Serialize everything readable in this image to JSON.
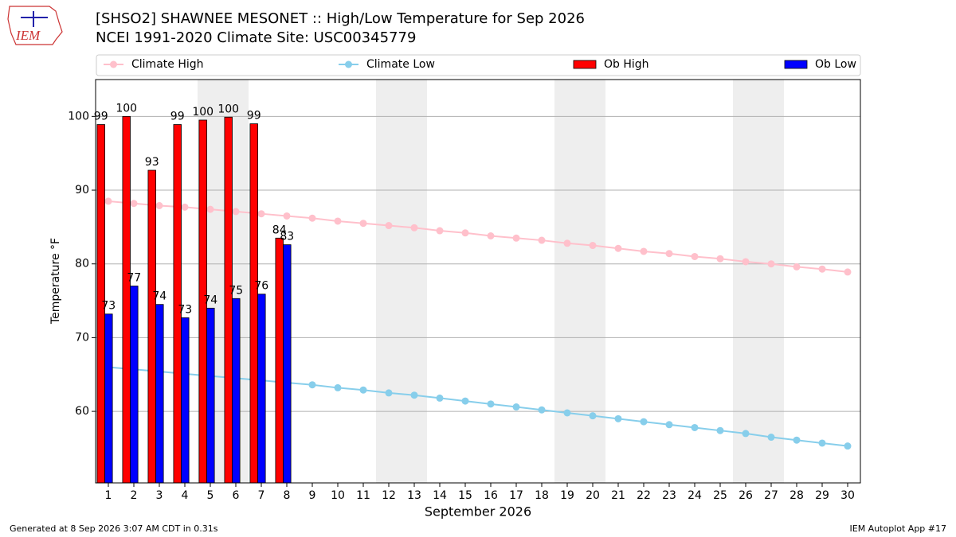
{
  "logo_text": "IEM",
  "footer_left": "Generated at 8 Sep 2026 3:07 AM CDT in 0.31s",
  "footer_right": "IEM Autoplot App #17",
  "chart_data": {
    "type": "bar",
    "title": "[SHSO2] SHAWNEE MESONET :: High/Low Temperature for Sep 2026",
    "subtitle": "NCEI 1991-2020 Climate Site: USC00345779",
    "x_label": "September 2026",
    "y_label": "Temperature °F",
    "x": [
      1,
      2,
      3,
      4,
      5,
      6,
      7,
      8,
      9,
      10,
      11,
      12,
      13,
      14,
      15,
      16,
      17,
      18,
      19,
      20,
      21,
      22,
      23,
      24,
      25,
      26,
      27,
      28,
      29,
      30
    ],
    "xlim": [
      0.5,
      30.5
    ],
    "xticks": [
      1,
      2,
      3,
      4,
      5,
      6,
      7,
      8,
      9,
      10,
      11,
      12,
      13,
      14,
      15,
      16,
      17,
      18,
      19,
      20,
      21,
      22,
      23,
      24,
      25,
      26,
      27,
      28,
      29,
      30
    ],
    "ylim": [
      50.3,
      105
    ],
    "yticks": [
      60,
      70,
      80,
      90,
      100
    ],
    "grid": true,
    "shaded": [
      [
        4.5,
        6.5
      ],
      [
        11.5,
        13.5
      ],
      [
        18.5,
        20.5
      ],
      [
        25.5,
        27.5
      ]
    ],
    "shade_color": "#eeeeee",
    "series": [
      {
        "name": "Climate High",
        "type": "line",
        "color": "#ffc0cb",
        "values": [
          88.5,
          88.2,
          87.9,
          87.7,
          87.4,
          87.1,
          86.8,
          86.5,
          86.2,
          85.8,
          85.5,
          85.2,
          84.9,
          84.5,
          84.2,
          83.8,
          83.5,
          83.2,
          82.8,
          82.5,
          82.1,
          81.7,
          81.4,
          81.0,
          80.7,
          80.3,
          80.0,
          79.6,
          79.3,
          78.9
        ]
      },
      {
        "name": "Climate Low",
        "type": "line",
        "color": "#87ceeb",
        "values": [
          66.0,
          65.7,
          65.4,
          65.1,
          64.8,
          64.5,
          64.2,
          63.9,
          63.6,
          63.2,
          62.9,
          62.5,
          62.2,
          61.8,
          61.4,
          61.0,
          60.6,
          60.2,
          59.8,
          59.4,
          59.0,
          58.6,
          58.2,
          57.8,
          57.4,
          57.0,
          56.5,
          56.1,
          55.7,
          55.3
        ]
      },
      {
        "name": "Ob High",
        "type": "bar",
        "color": "#ff0000",
        "values": [
          98.9,
          100,
          92.7,
          98.9,
          99.5,
          99.9,
          99.0,
          83.5,
          null,
          null,
          null,
          null,
          null,
          null,
          null,
          null,
          null,
          null,
          null,
          null,
          null,
          null,
          null,
          null,
          null,
          null,
          null,
          null,
          null,
          null
        ],
        "value_labels": [
          "99",
          "100",
          "93",
          "99",
          "100",
          "100",
          "99",
          "84",
          null,
          null,
          null,
          null,
          null,
          null,
          null,
          null,
          null,
          null,
          null,
          null,
          null,
          null,
          null,
          null,
          null,
          null,
          null,
          null,
          null,
          null
        ]
      },
      {
        "name": "Ob Low",
        "type": "bar",
        "color": "#0000ff",
        "values": [
          73.2,
          77.0,
          74.5,
          72.7,
          74.0,
          75.3,
          75.9,
          82.6,
          null,
          null,
          null,
          null,
          null,
          null,
          null,
          null,
          null,
          null,
          null,
          null,
          null,
          null,
          null,
          null,
          null,
          null,
          null,
          null,
          null,
          null
        ],
        "value_labels": [
          "73",
          "77",
          "74",
          "73",
          "74",
          "75",
          "76",
          "83",
          null,
          null,
          null,
          null,
          null,
          null,
          null,
          null,
          null,
          null,
          null,
          null,
          null,
          null,
          null,
          null,
          null,
          null,
          null,
          null,
          null,
          null
        ]
      }
    ]
  }
}
